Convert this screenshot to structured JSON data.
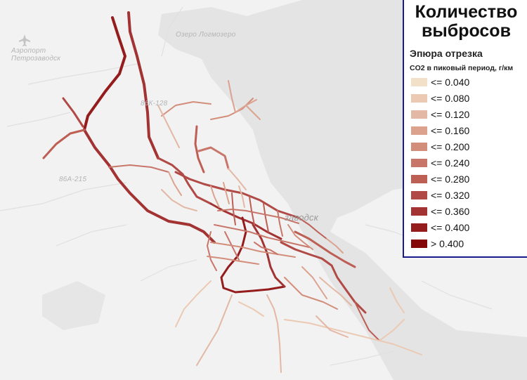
{
  "map": {
    "labels": {
      "airport_line1": "Аэропорт",
      "airport_line2": "Петрозаводск",
      "lake": "Озеро Логмозеро",
      "road_a": "86К-128",
      "road_b": "86A-215",
      "city": "заводск"
    },
    "icons": [
      "airplane-icon",
      "road-shield-icon"
    ]
  },
  "legend": {
    "title_line1": "Количество",
    "title_line2": "выбросов",
    "subtitle": "Эпюра отрезка",
    "measure": "CO2 в пиковый период, г/км",
    "classes": [
      {
        "label": "<= 0.040",
        "color": "#f2e1c8"
      },
      {
        "label": "<= 0.080",
        "color": "#ebc9b3"
      },
      {
        "label": "<= 0.120",
        "color": "#e3b8a4"
      },
      {
        "label": "<= 0.160",
        "color": "#dca28e"
      },
      {
        "label": "<= 0.200",
        "color": "#d38d7b"
      },
      {
        "label": "<= 0.240",
        "color": "#c9766a"
      },
      {
        "label": "<= 0.280",
        "color": "#be5f56"
      },
      {
        "label": "<= 0.320",
        "color": "#b14a46"
      },
      {
        "label": "<= 0.360",
        "color": "#a33333"
      },
      {
        "label": "<= 0.400",
        "color": "#941c1c"
      },
      {
        "label": "> 0.400",
        "color": "#840808"
      }
    ]
  },
  "colors": {
    "background": "#f2f2f2",
    "water": "#e3e3e3",
    "legend_border": "#1a1a8c"
  }
}
